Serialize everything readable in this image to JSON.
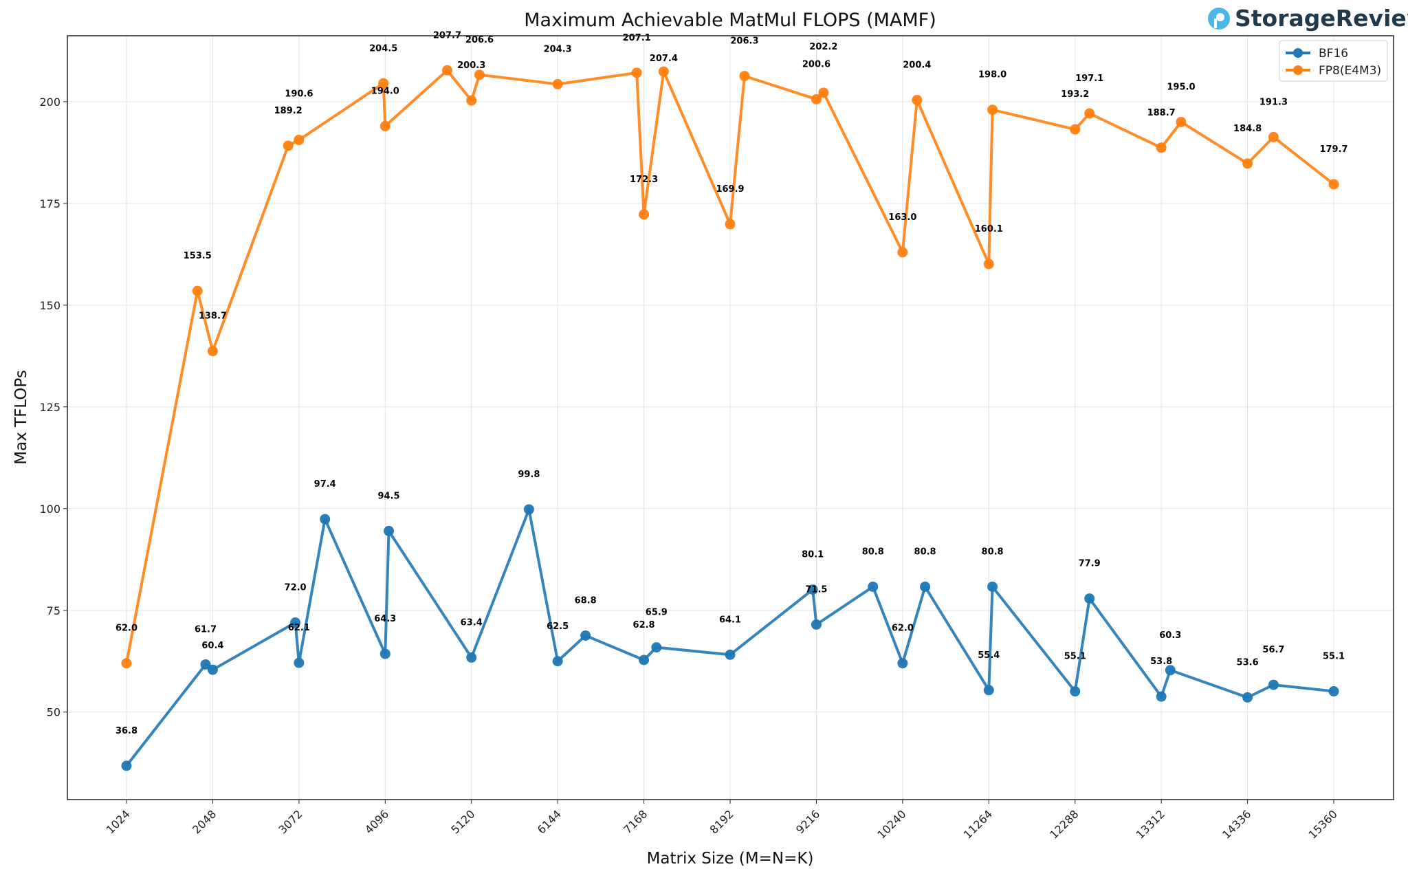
{
  "brand": {
    "name": "StorageReview"
  },
  "chart_data": {
    "type": "line",
    "title": "Maximum Achievable MatMul FLOPS (MAMF)",
    "xlabel": "Matrix Size (M=N=K)",
    "ylabel": "Max TFLOPs",
    "xlim": [
      322,
      16070
    ],
    "ylim": [
      28.5,
      216.2
    ],
    "xticks": [
      1024,
      2048,
      3072,
      4096,
      5120,
      6144,
      7168,
      8192,
      9216,
      10240,
      11264,
      12288,
      13312,
      14336,
      15360
    ],
    "xtick_labels": [
      "1024",
      "2048",
      "3072",
      "4096",
      "5120",
      "6144",
      "7168",
      "8192",
      "9216",
      "10240",
      "11264",
      "12288",
      "13312",
      "14336",
      "15360"
    ],
    "yticks": [
      50,
      75,
      100,
      125,
      150,
      175,
      200
    ],
    "ytick_labels": [
      "50",
      "75",
      "100",
      "125",
      "150",
      "175",
      "200"
    ],
    "grid": true,
    "legend_position": "top-right",
    "series": [
      {
        "name": "BF16",
        "color": "#1f77b4",
        "x": [
          1024,
          1963,
          2048,
          3029,
          3072,
          3381,
          4096,
          4139,
          5120,
          5803,
          6144,
          6475,
          7168,
          7317,
          8192,
          9173,
          9216,
          9888,
          10240,
          10507,
          11264,
          11307,
          12288,
          12459,
          13312,
          13419,
          14336,
          14645,
          15360
        ],
        "y": [
          36.8,
          61.7,
          60.4,
          72.0,
          62.1,
          97.4,
          64.3,
          94.5,
          63.4,
          99.8,
          62.5,
          68.8,
          62.8,
          65.9,
          64.1,
          80.1,
          71.5,
          80.8,
          62.0,
          80.8,
          55.4,
          80.8,
          55.1,
          77.9,
          53.8,
          60.3,
          53.6,
          56.7,
          55.1
        ],
        "labels": [
          "36.8",
          "61.7",
          "60.4",
          "72.0",
          "62.1",
          "97.4",
          "64.3",
          "94.5",
          "63.4",
          "99.8",
          "62.5",
          "68.8",
          "62.8",
          "65.9",
          "64.1",
          "80.1",
          "71.5",
          "80.8",
          "62.0",
          "80.8",
          "55.4",
          "80.8",
          "55.1",
          "77.9",
          "53.8",
          "60.3",
          "53.6",
          "56.7",
          "55.1"
        ]
      },
      {
        "name": "FP8(E4M3)",
        "color": "#ff7f0e",
        "x": [
          1024,
          1867,
          2048,
          2944,
          3072,
          4075,
          4096,
          4832,
          5120,
          5216,
          6144,
          7083,
          7168,
          7403,
          8192,
          8363,
          9216,
          9301,
          10240,
          10411,
          11264,
          11307,
          12288,
          12459,
          13312,
          13547,
          14336,
          14645,
          15360
        ],
        "y": [
          62.0,
          153.5,
          138.7,
          189.2,
          190.6,
          204.5,
          194.0,
          207.7,
          200.3,
          206.6,
          204.3,
          207.1,
          172.3,
          207.4,
          169.9,
          206.3,
          200.6,
          202.2,
          163.0,
          200.4,
          160.1,
          198.0,
          193.2,
          197.1,
          188.7,
          195.0,
          184.8,
          191.3,
          179.7
        ],
        "labels": [
          "62.0",
          "153.5",
          "138.7",
          "189.2",
          "190.6",
          "204.5",
          "194.0",
          "207.7",
          "200.3",
          "206.6",
          "204.3",
          "207.1",
          "172.3",
          "207.4",
          "169.9",
          "206.3",
          "200.6",
          "202.2",
          "163.0",
          "200.4",
          "160.1",
          "198.0",
          "193.2",
          "197.1",
          "188.7",
          "195.0",
          "184.8",
          "191.3",
          "179.7"
        ]
      }
    ]
  }
}
